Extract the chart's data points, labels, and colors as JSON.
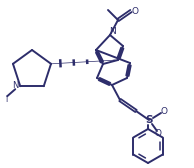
{
  "bg_color": "#ffffff",
  "line_color": "#2d2d6b",
  "line_width": 1.4,
  "figsize": [
    1.94,
    1.68
  ],
  "dpi": 100,
  "xlim": [
    0,
    194
  ],
  "ylim": [
    0,
    168
  ]
}
